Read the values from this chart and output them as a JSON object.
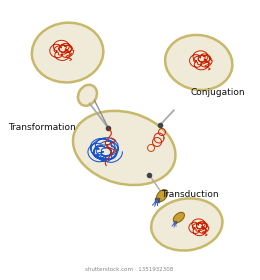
{
  "bg_color": "#ffffff",
  "cell_color": "#f0ead8",
  "cell_edge_color": "#c8b86a",
  "cell_edge_lw": 1.8,
  "dna_red": "#cc2200",
  "dna_blue": "#1a55cc",
  "label_transformation": "Transformation",
  "label_conjugation": "Conjugation",
  "label_transduction": "Transduction",
  "label_fontsize": 6.5,
  "phage_color": "#c8a030",
  "phage_tail_color": "#4466bb",
  "connector_color": "#b0b0b0",
  "dot_color": "#444444",
  "plasmid_color": "#cc4400",
  "watermark": "shutterstock.com · 1351932308",
  "watermark_fontsize": 4.0
}
